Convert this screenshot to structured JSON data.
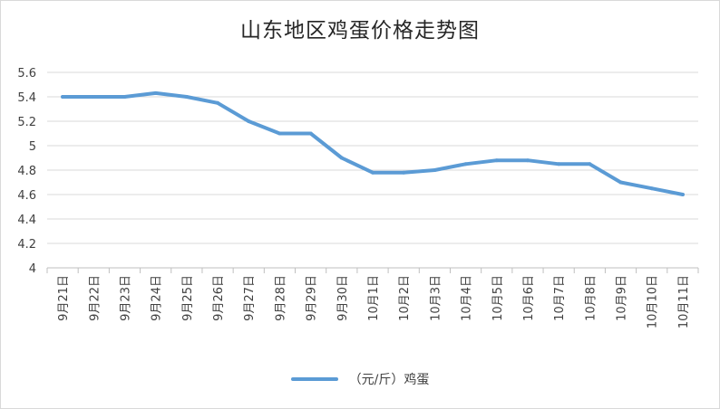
{
  "chart_data": {
    "type": "line",
    "title": "山东地区鸡蛋价格走势图",
    "xlabel": "",
    "ylabel": "",
    "categories": [
      "9月21日",
      "9月22日",
      "9月23日",
      "9月24日",
      "9月25日",
      "9月26日",
      "9月27日",
      "9月28日",
      "9月29日",
      "9月30日",
      "10月1日",
      "10月2日",
      "10月3日",
      "10月4日",
      "10月5日",
      "10月6日",
      "10月7日",
      "10月8日",
      "10月9日",
      "10月10日",
      "10月11日"
    ],
    "series": [
      {
        "name": "（元/斤）鸡蛋",
        "color": "#5b9bd5",
        "values": [
          5.4,
          5.4,
          5.4,
          5.43,
          5.4,
          5.35,
          5.2,
          5.1,
          5.1,
          4.9,
          4.78,
          4.78,
          4.8,
          4.85,
          4.88,
          4.88,
          4.85,
          4.85,
          4.7,
          4.65,
          4.6
        ]
      }
    ],
    "ylim": [
      4,
      5.6
    ],
    "yticks": [
      "4",
      "4.2",
      "4.4",
      "4.6",
      "4.8",
      "5",
      "5.2",
      "5.4",
      "5.6"
    ],
    "grid": true,
    "legend_position": "bottom"
  }
}
